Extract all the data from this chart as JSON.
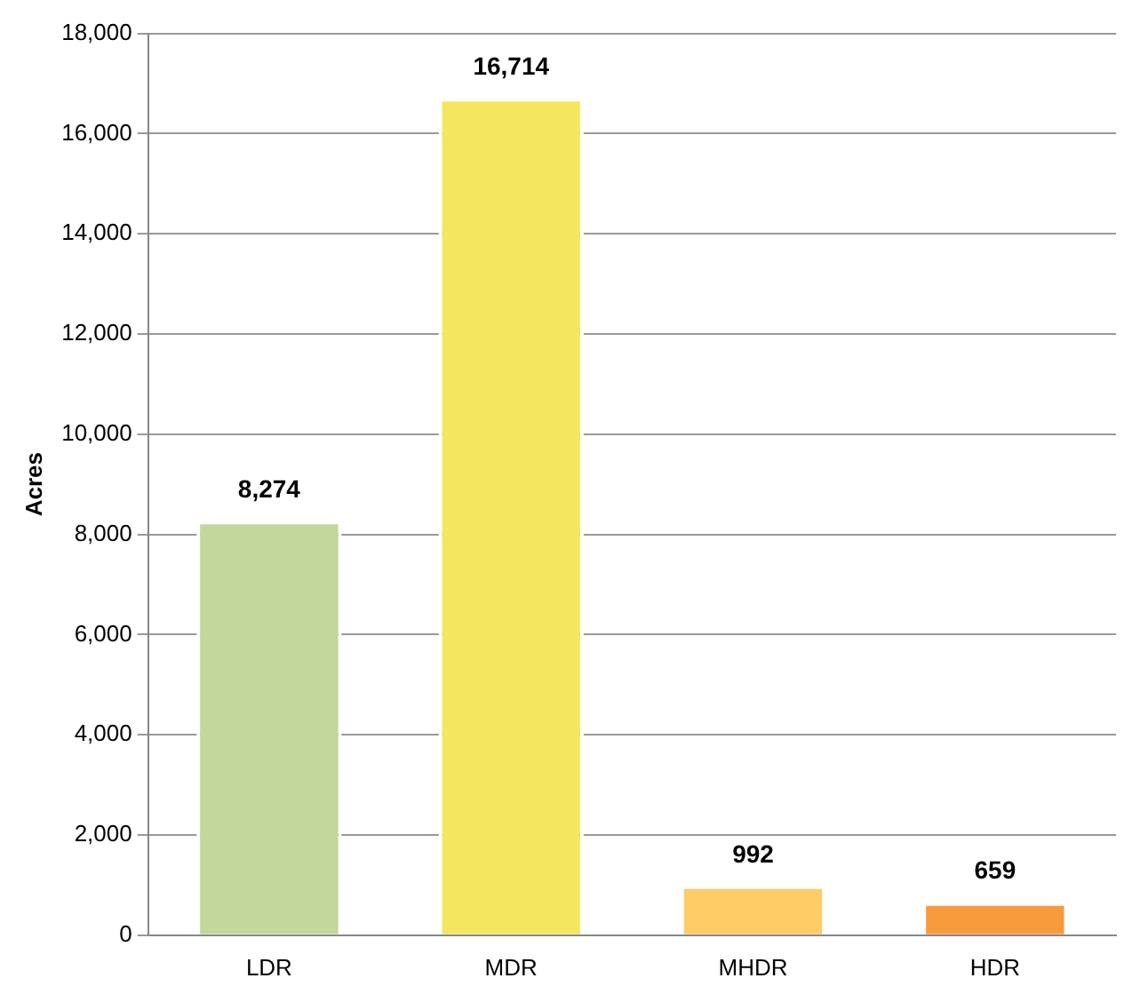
{
  "chart_data": {
    "type": "bar",
    "ylabel": "Acres",
    "categories": [
      "LDR",
      "MDR",
      "MHDR",
      "HDR"
    ],
    "values": [
      8274,
      16714,
      992,
      659
    ],
    "value_labels": [
      "8,274",
      "16,714",
      "992",
      "659"
    ],
    "colors": [
      "#c3d69b",
      "#f4e75f",
      "#ffcc66",
      "#f89b3c"
    ],
    "ylim": [
      0,
      18000
    ],
    "yticks": [
      0,
      {
        "value": 2000,
        "label": "2,000"
      },
      {
        "value": 4000,
        "label": "4,000"
      },
      {
        "value": 6000,
        "label": "6,000"
      },
      {
        "value": 8000,
        "label": "8,000"
      },
      {
        "value": 10000,
        "label": "10,000"
      },
      {
        "value": 12000,
        "label": "12,000"
      },
      {
        "value": 14000,
        "label": "14,000"
      },
      {
        "value": 16000,
        "label": "16,000"
      },
      {
        "value": 18000,
        "label": "18,000"
      }
    ],
    "grid": "y",
    "legend": false
  }
}
